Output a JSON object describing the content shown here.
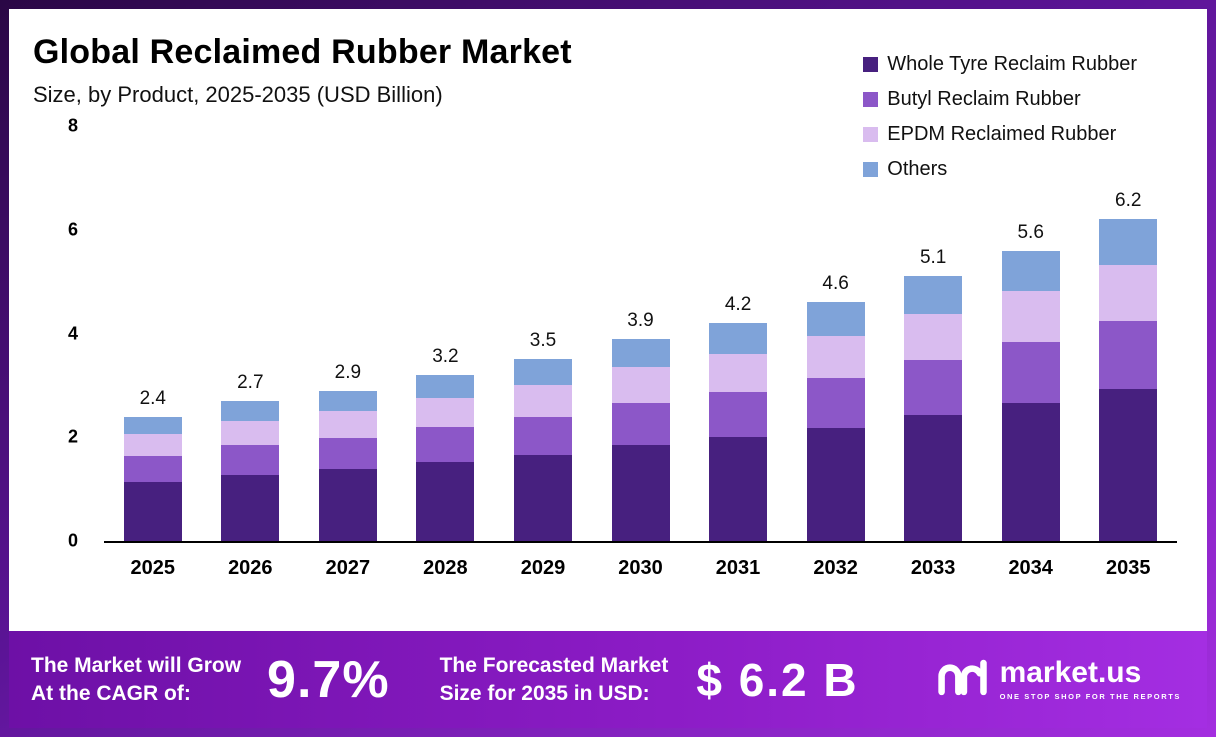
{
  "header": {
    "title": "Global Reclaimed Rubber Market",
    "subtitle": "Size, by Product, 2025-2035 (USD Billion)"
  },
  "chart_data": {
    "type": "bar",
    "stacked": true,
    "title": "Global Reclaimed Rubber Market Size, by Product, 2025-2035 (USD Billion)",
    "categories": [
      "2025",
      "2026",
      "2027",
      "2028",
      "2029",
      "2030",
      "2031",
      "2032",
      "2033",
      "2034",
      "2035"
    ],
    "totals": [
      "2.4",
      "2.7",
      "2.9",
      "3.2",
      "3.5",
      "3.9",
      "4.2",
      "4.6",
      "5.1",
      "5.6",
      "6.2"
    ],
    "series": [
      {
        "name": "Whole Tyre Reclaim Rubber",
        "color": "#47207f",
        "values": [
          1.14,
          1.28,
          1.38,
          1.52,
          1.66,
          1.85,
          2.0,
          2.18,
          2.42,
          2.66,
          2.94
        ]
      },
      {
        "name": "Butyl Reclaim Rubber",
        "color": "#8c57c8",
        "values": [
          0.5,
          0.57,
          0.61,
          0.67,
          0.74,
          0.82,
          0.88,
          0.97,
          1.07,
          1.18,
          1.3
        ]
      },
      {
        "name": "EPDM Reclaimed Rubber",
        "color": "#d9bcef",
        "values": [
          0.42,
          0.47,
          0.51,
          0.56,
          0.61,
          0.68,
          0.73,
          0.81,
          0.89,
          0.98,
          1.09
        ]
      },
      {
        "name": "Others",
        "color": "#7fa3d9",
        "values": [
          0.34,
          0.38,
          0.4,
          0.45,
          0.49,
          0.55,
          0.59,
          0.64,
          0.72,
          0.78,
          0.87
        ]
      }
    ],
    "xlabel": "",
    "ylabel": "",
    "ylim": [
      0,
      8
    ],
    "yticks": [
      0,
      2,
      4,
      6,
      8
    ],
    "grid": false,
    "legend_position": "top-right",
    "data_labels": "totals shown above each bar"
  },
  "banner": {
    "cagr_label_line1": "The Market will Grow",
    "cagr_label_line2": "At the CAGR of:",
    "cagr_value": "9.7%",
    "forecast_label_line1": "The Forecasted Market",
    "forecast_label_line2": "Size for 2035 in USD:",
    "forecast_value": "$ 6.2 B",
    "brand": "market.us",
    "brand_tagline": "ONE STOP SHOP FOR THE REPORTS"
  },
  "colors": {
    "frame_gradient_start": "#2a0745",
    "frame_gradient_end": "#a42ee0",
    "banner_gradient_start": "#6d10a6",
    "banner_gradient_end": "#a42ee2",
    "axis": "#000000",
    "text": "#111111"
  }
}
